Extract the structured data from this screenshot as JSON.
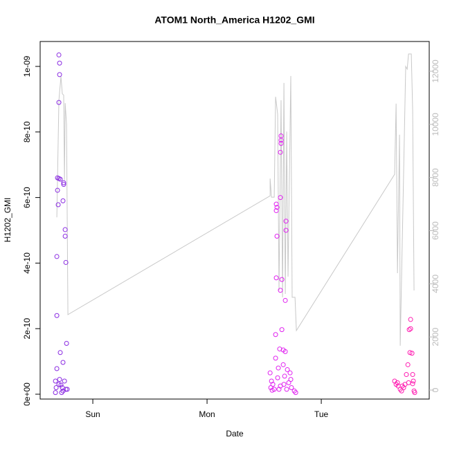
{
  "chart_data": {
    "type": "scatter",
    "title": "ATOM1 North_America H1202_GMI",
    "xlabel": "Date",
    "ylabel": "H1202_GMI",
    "xlim": [
      0.539,
      3.945
    ],
    "xticks": [
      {
        "value": 1,
        "label": "Sun"
      },
      {
        "value": 2,
        "label": "Mon"
      },
      {
        "value": 3,
        "label": "Tue"
      }
    ],
    "ylim": [
      -1.48e-11,
      1.076e-09
    ],
    "yticks": [
      {
        "value": 0,
        "label": "0e+00"
      },
      {
        "value": 2e-10,
        "label": "2e-10"
      },
      {
        "value": 4e-10,
        "label": "4e-10"
      },
      {
        "value": 6e-10,
        "label": "6e-10"
      },
      {
        "value": 8e-10,
        "label": "8e-10"
      },
      {
        "value": 1e-09,
        "label": "1e-09"
      }
    ],
    "y2lim": [
      -338,
      13119
    ],
    "y2ticks": [
      0,
      2000,
      4000,
      6000,
      8000,
      10000,
      12000
    ],
    "y2color": "#bbbbbb",
    "series": [
      {
        "type": "scatter",
        "color": "#8a2be2",
        "x": [
          0.703,
          0.709,
          0.709,
          0.703,
          0.691,
          0.703,
          0.715,
          0.691,
          0.697,
          0.745,
          0.745,
          0.739,
          0.758,
          0.758,
          0.764,
          0.685,
          0.685,
          0.77,
          0.715,
          0.739,
          0.685,
          0.673,
          0.709,
          0.721,
          0.733,
          0.752,
          0.764,
          0.776,
          0.673,
          0.727,
          0.739,
          0.703,
          0.679
        ],
        "values": [
          1.035e-09,
          1.01e-09,
          9.75e-10,
          8.9e-10,
          6.6e-10,
          6.58e-10,
          6.56e-10,
          6.22e-10,
          5.78e-10,
          6.45e-10,
          6.4e-10,
          5.9e-10,
          5.02e-10,
          4.82e-10,
          4.02e-10,
          4.2e-10,
          2.4e-10,
          1.55e-10,
          1.27e-10,
          9.7e-11,
          7.8e-11,
          4e-11,
          4.5e-11,
          2.8e-11,
          2e-11,
          4e-11,
          1.5e-11,
          1.5e-11,
          5e-12,
          5e-12,
          1e-11,
          3e-11,
          2e-11
        ]
      },
      {
        "type": "scatter",
        "color": "#e020f0",
        "x": [
          2.606,
          2.612,
          2.606,
          2.612,
          2.606,
          2.642,
          2.648,
          2.648,
          2.648,
          2.642,
          2.691,
          2.691,
          2.655,
          2.642,
          2.685,
          2.655,
          2.6,
          2.636,
          2.667,
          2.685,
          2.6,
          2.552,
          2.564,
          2.576,
          2.624,
          2.667,
          2.703,
          2.727,
          2.733,
          2.588,
          2.57,
          2.618,
          2.642,
          2.673,
          2.697,
          2.715,
          2.739,
          2.764,
          2.776,
          2.63,
          2.679,
          2.558
        ],
        "values": [
          5.8e-10,
          5.7e-10,
          5.6e-10,
          4.82e-10,
          3.55e-10,
          6e-10,
          7.88e-10,
          7.75e-10,
          7.65e-10,
          7.38e-10,
          5.28e-10,
          5e-10,
          3.5e-10,
          3.17e-10,
          2.86e-10,
          1.97e-10,
          1.82e-10,
          1.38e-10,
          1.35e-10,
          1.3e-10,
          1.1e-10,
          6.5e-11,
          4e-11,
          3e-11,
          8e-11,
          9e-11,
          7.5e-11,
          6.5e-11,
          4.5e-11,
          1.5e-11,
          1.2e-11,
          5e-11,
          2.5e-11,
          3e-11,
          1.5e-11,
          3.5e-11,
          2e-11,
          1e-11,
          5e-12,
          1.5e-11,
          5.5e-11,
          2e-11
        ]
      },
      {
        "type": "scatter",
        "color": "#ff1ab0",
        "x": [
          3.782,
          3.782,
          3.77,
          3.776,
          3.794,
          3.758,
          3.8,
          3.745,
          3.642,
          3.655,
          3.673,
          3.691,
          3.703,
          3.721,
          3.733,
          3.764,
          3.806,
          3.812,
          3.818,
          3.709,
          3.667,
          3.8
        ],
        "values": [
          2.28e-10,
          2e-10,
          1.97e-10,
          1.27e-10,
          1.25e-10,
          9e-11,
          6e-11,
          6e-11,
          4e-11,
          3e-11,
          2.5e-11,
          1.5e-11,
          1e-11,
          2e-11,
          3e-11,
          3.5e-11,
          4e-11,
          1e-11,
          5e-12,
          2.5e-11,
          3.5e-11,
          3.2e-11
        ]
      },
      {
        "type": "line",
        "axis": "y2",
        "color": "#c8c8c8",
        "x": [
          0.685,
          0.703,
          0.721,
          0.733,
          0.745,
          0.752,
          0.758,
          0.77,
          0.782,
          2.552,
          2.552,
          2.564,
          2.588,
          2.6,
          2.618,
          2.63,
          2.648,
          2.661,
          2.673,
          2.685,
          2.697,
          2.709,
          2.733,
          2.745,
          2.77,
          2.782,
          3.642,
          3.655,
          3.667,
          3.685,
          3.691,
          3.703,
          3.739,
          3.752,
          3.764,
          3.788,
          3.8,
          3.812
        ],
        "values": [
          6500,
          10900,
          11800,
          11150,
          11100,
          7900,
          10800,
          10000,
          2840,
          7310,
          7960,
          7260,
          7260,
          11040,
          10390,
          3750,
          10910,
          3490,
          11560,
          3620,
          9730,
          4270,
          11820,
          3490,
          3490,
          2240,
          8120,
          10780,
          4400,
          9610,
          1670,
          4270,
          12180,
          12080,
          12650,
          12650,
          10520,
          3750
        ]
      }
    ]
  }
}
